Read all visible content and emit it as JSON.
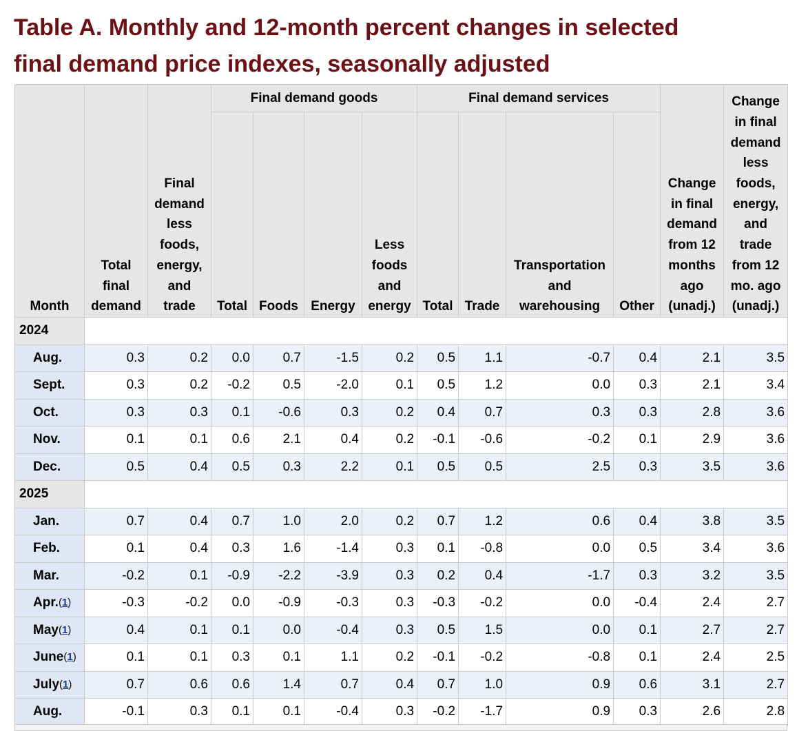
{
  "title_line1": "Table A. Monthly and 12-month percent changes in selected",
  "title_line2": "final demand price indexes, seasonally adjusted",
  "headers": {
    "month": "Month",
    "total_final_demand": [
      "Total",
      "final",
      "demand"
    ],
    "fd_less": [
      "Final",
      "demand",
      "less",
      "foods,",
      "energy,",
      "and",
      "trade"
    ],
    "goods_group": "Final demand goods",
    "services_group": "Final demand services",
    "goods_total": "Total",
    "goods_foods": "Foods",
    "goods_energy": "Energy",
    "goods_less": [
      "Less",
      "foods",
      "and",
      "energy"
    ],
    "services_total": "Total",
    "services_trade": "Trade",
    "services_transport": [
      "Transportation",
      "and",
      "warehousing"
    ],
    "services_other": "Other",
    "change_12m": [
      "Change",
      "in final",
      "demand",
      "from 12",
      "months",
      "ago",
      "(unadj.)"
    ],
    "change_less_12m": [
      "Change",
      "in final",
      "demand",
      "less",
      "foods,",
      "energy,",
      "and",
      "trade",
      "from 12",
      "mo. ago",
      "(unadj.)"
    ]
  },
  "sections": [
    {
      "year": "2024",
      "rows": [
        {
          "month": "Aug.",
          "note": "",
          "values": [
            "0.3",
            "0.2",
            "0.0",
            "0.7",
            "-1.5",
            "0.2",
            "0.5",
            "1.1",
            "-0.7",
            "0.4",
            "2.1",
            "3.5"
          ]
        },
        {
          "month": "Sept.",
          "note": "",
          "values": [
            "0.3",
            "0.2",
            "-0.2",
            "0.5",
            "-2.0",
            "0.1",
            "0.5",
            "1.2",
            "0.0",
            "0.3",
            "2.1",
            "3.4"
          ]
        },
        {
          "month": "Oct.",
          "note": "",
          "values": [
            "0.3",
            "0.3",
            "0.1",
            "-0.6",
            "0.3",
            "0.2",
            "0.4",
            "0.7",
            "0.3",
            "0.3",
            "2.8",
            "3.6"
          ]
        },
        {
          "month": "Nov.",
          "note": "",
          "values": [
            "0.1",
            "0.1",
            "0.6",
            "2.1",
            "0.4",
            "0.2",
            "-0.1",
            "-0.6",
            "-0.2",
            "0.1",
            "2.9",
            "3.6"
          ]
        },
        {
          "month": "Dec.",
          "note": "",
          "values": [
            "0.5",
            "0.4",
            "0.5",
            "0.3",
            "2.2",
            "0.1",
            "0.5",
            "0.5",
            "2.5",
            "0.3",
            "3.5",
            "3.6"
          ]
        }
      ]
    },
    {
      "year": "2025",
      "rows": [
        {
          "month": "Jan.",
          "note": "",
          "values": [
            "0.7",
            "0.4",
            "0.7",
            "1.0",
            "2.0",
            "0.2",
            "0.7",
            "1.2",
            "0.6",
            "0.4",
            "3.8",
            "3.5"
          ]
        },
        {
          "month": "Feb.",
          "note": "",
          "values": [
            "0.1",
            "0.4",
            "0.3",
            "1.6",
            "-1.4",
            "0.3",
            "0.1",
            "-0.8",
            "0.0",
            "0.5",
            "3.4",
            "3.6"
          ]
        },
        {
          "month": "Mar.",
          "note": "",
          "values": [
            "-0.2",
            "0.1",
            "-0.9",
            "-2.2",
            "-3.9",
            "0.3",
            "0.2",
            "0.4",
            "-1.7",
            "0.3",
            "3.2",
            "3.5"
          ]
        },
        {
          "month": "Apr.",
          "note": "1",
          "values": [
            "-0.3",
            "-0.2",
            "0.0",
            "-0.9",
            "-0.3",
            "0.3",
            "-0.3",
            "-0.2",
            "0.0",
            "-0.4",
            "2.4",
            "2.7"
          ]
        },
        {
          "month": "May",
          "note": "1",
          "values": [
            "0.4",
            "0.1",
            "0.1",
            "0.0",
            "-0.4",
            "0.3",
            "0.5",
            "1.5",
            "0.0",
            "0.1",
            "2.7",
            "2.7"
          ]
        },
        {
          "month": "June",
          "note": "1",
          "values": [
            "0.1",
            "0.1",
            "0.3",
            "0.1",
            "1.1",
            "0.2",
            "-0.1",
            "-0.2",
            "-0.8",
            "0.1",
            "2.4",
            "2.5"
          ]
        },
        {
          "month": "July",
          "note": "1",
          "values": [
            "0.7",
            "0.6",
            "0.6",
            "1.4",
            "0.7",
            "0.4",
            "0.7",
            "1.0",
            "0.9",
            "0.6",
            "3.1",
            "2.7"
          ]
        },
        {
          "month": "Aug.",
          "note": "",
          "values": [
            "-0.1",
            "0.3",
            "0.1",
            "0.1",
            "-0.4",
            "0.3",
            "-0.2",
            "-1.7",
            "0.9",
            "0.3",
            "2.6",
            "2.8"
          ]
        }
      ]
    }
  ]
}
